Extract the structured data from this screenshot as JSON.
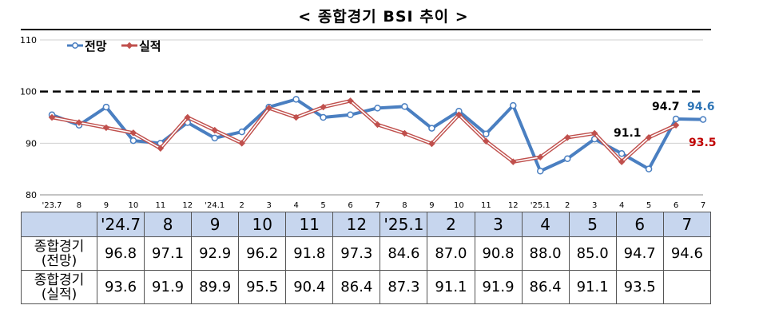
{
  "title": "< 종합경기 BSI 추이 >",
  "chart_data": {
    "type": "line",
    "x_tick_labels": [
      "'23.7",
      "8",
      "9",
      "10",
      "11",
      "12",
      "'24.1",
      "2",
      "3",
      "4",
      "5",
      "6",
      "7",
      "8",
      "9",
      "10",
      "11",
      "12",
      "'25.1",
      "2",
      "3",
      "4",
      "5",
      "6",
      "7"
    ],
    "y_ticks": [
      80,
      90,
      100,
      110
    ],
    "ylim": [
      80,
      110
    ],
    "reference_line": 100,
    "series": [
      {
        "name": "전망",
        "color": "#4a7fc1",
        "values": [
          95.5,
          93.5,
          97.0,
          90.5,
          90.0,
          94.0,
          91.0,
          92.2,
          97.0,
          98.5,
          95.0,
          95.5,
          96.8,
          97.1,
          92.9,
          96.2,
          91.8,
          97.3,
          84.6,
          87.0,
          90.8,
          88.0,
          85.0,
          94.7,
          94.6
        ]
      },
      {
        "name": "실적",
        "color": "#c0504d",
        "values": [
          95.0,
          94.0,
          93.0,
          92.0,
          89.0,
          95.0,
          92.5,
          90.0,
          96.8,
          95.0,
          97.0,
          98.2,
          93.6,
          91.9,
          89.9,
          95.5,
          90.4,
          86.4,
          87.3,
          91.1,
          91.9,
          86.4,
          91.1,
          93.5,
          null
        ]
      }
    ],
    "annotations": [
      {
        "text": "94.7",
        "color": "#000000"
      },
      {
        "text": "94.6",
        "color": "#2e75b6"
      },
      {
        "text": "91.1",
        "color": "#000000"
      },
      {
        "text": "93.5",
        "color": "#c00000"
      }
    ]
  },
  "table": {
    "columns": [
      "'24.7",
      "8",
      "9",
      "10",
      "11",
      "12",
      "'25.1",
      "2",
      "3",
      "4",
      "5",
      "6",
      "7"
    ],
    "rows": [
      {
        "label": "종합경기\n(전망)",
        "values": [
          "96.8",
          "97.1",
          "92.9",
          "96.2",
          "91.8",
          "97.3",
          "84.6",
          "87.0",
          "90.8",
          "88.0",
          "85.0",
          "94.7",
          "94.6"
        ]
      },
      {
        "label": "종합경기\n(실적)",
        "values": [
          "93.6",
          "91.9",
          "89.9",
          "95.5",
          "90.4",
          "86.4",
          "87.3",
          "91.1",
          "91.9",
          "86.4",
          "91.1",
          "93.5",
          ""
        ]
      }
    ]
  }
}
